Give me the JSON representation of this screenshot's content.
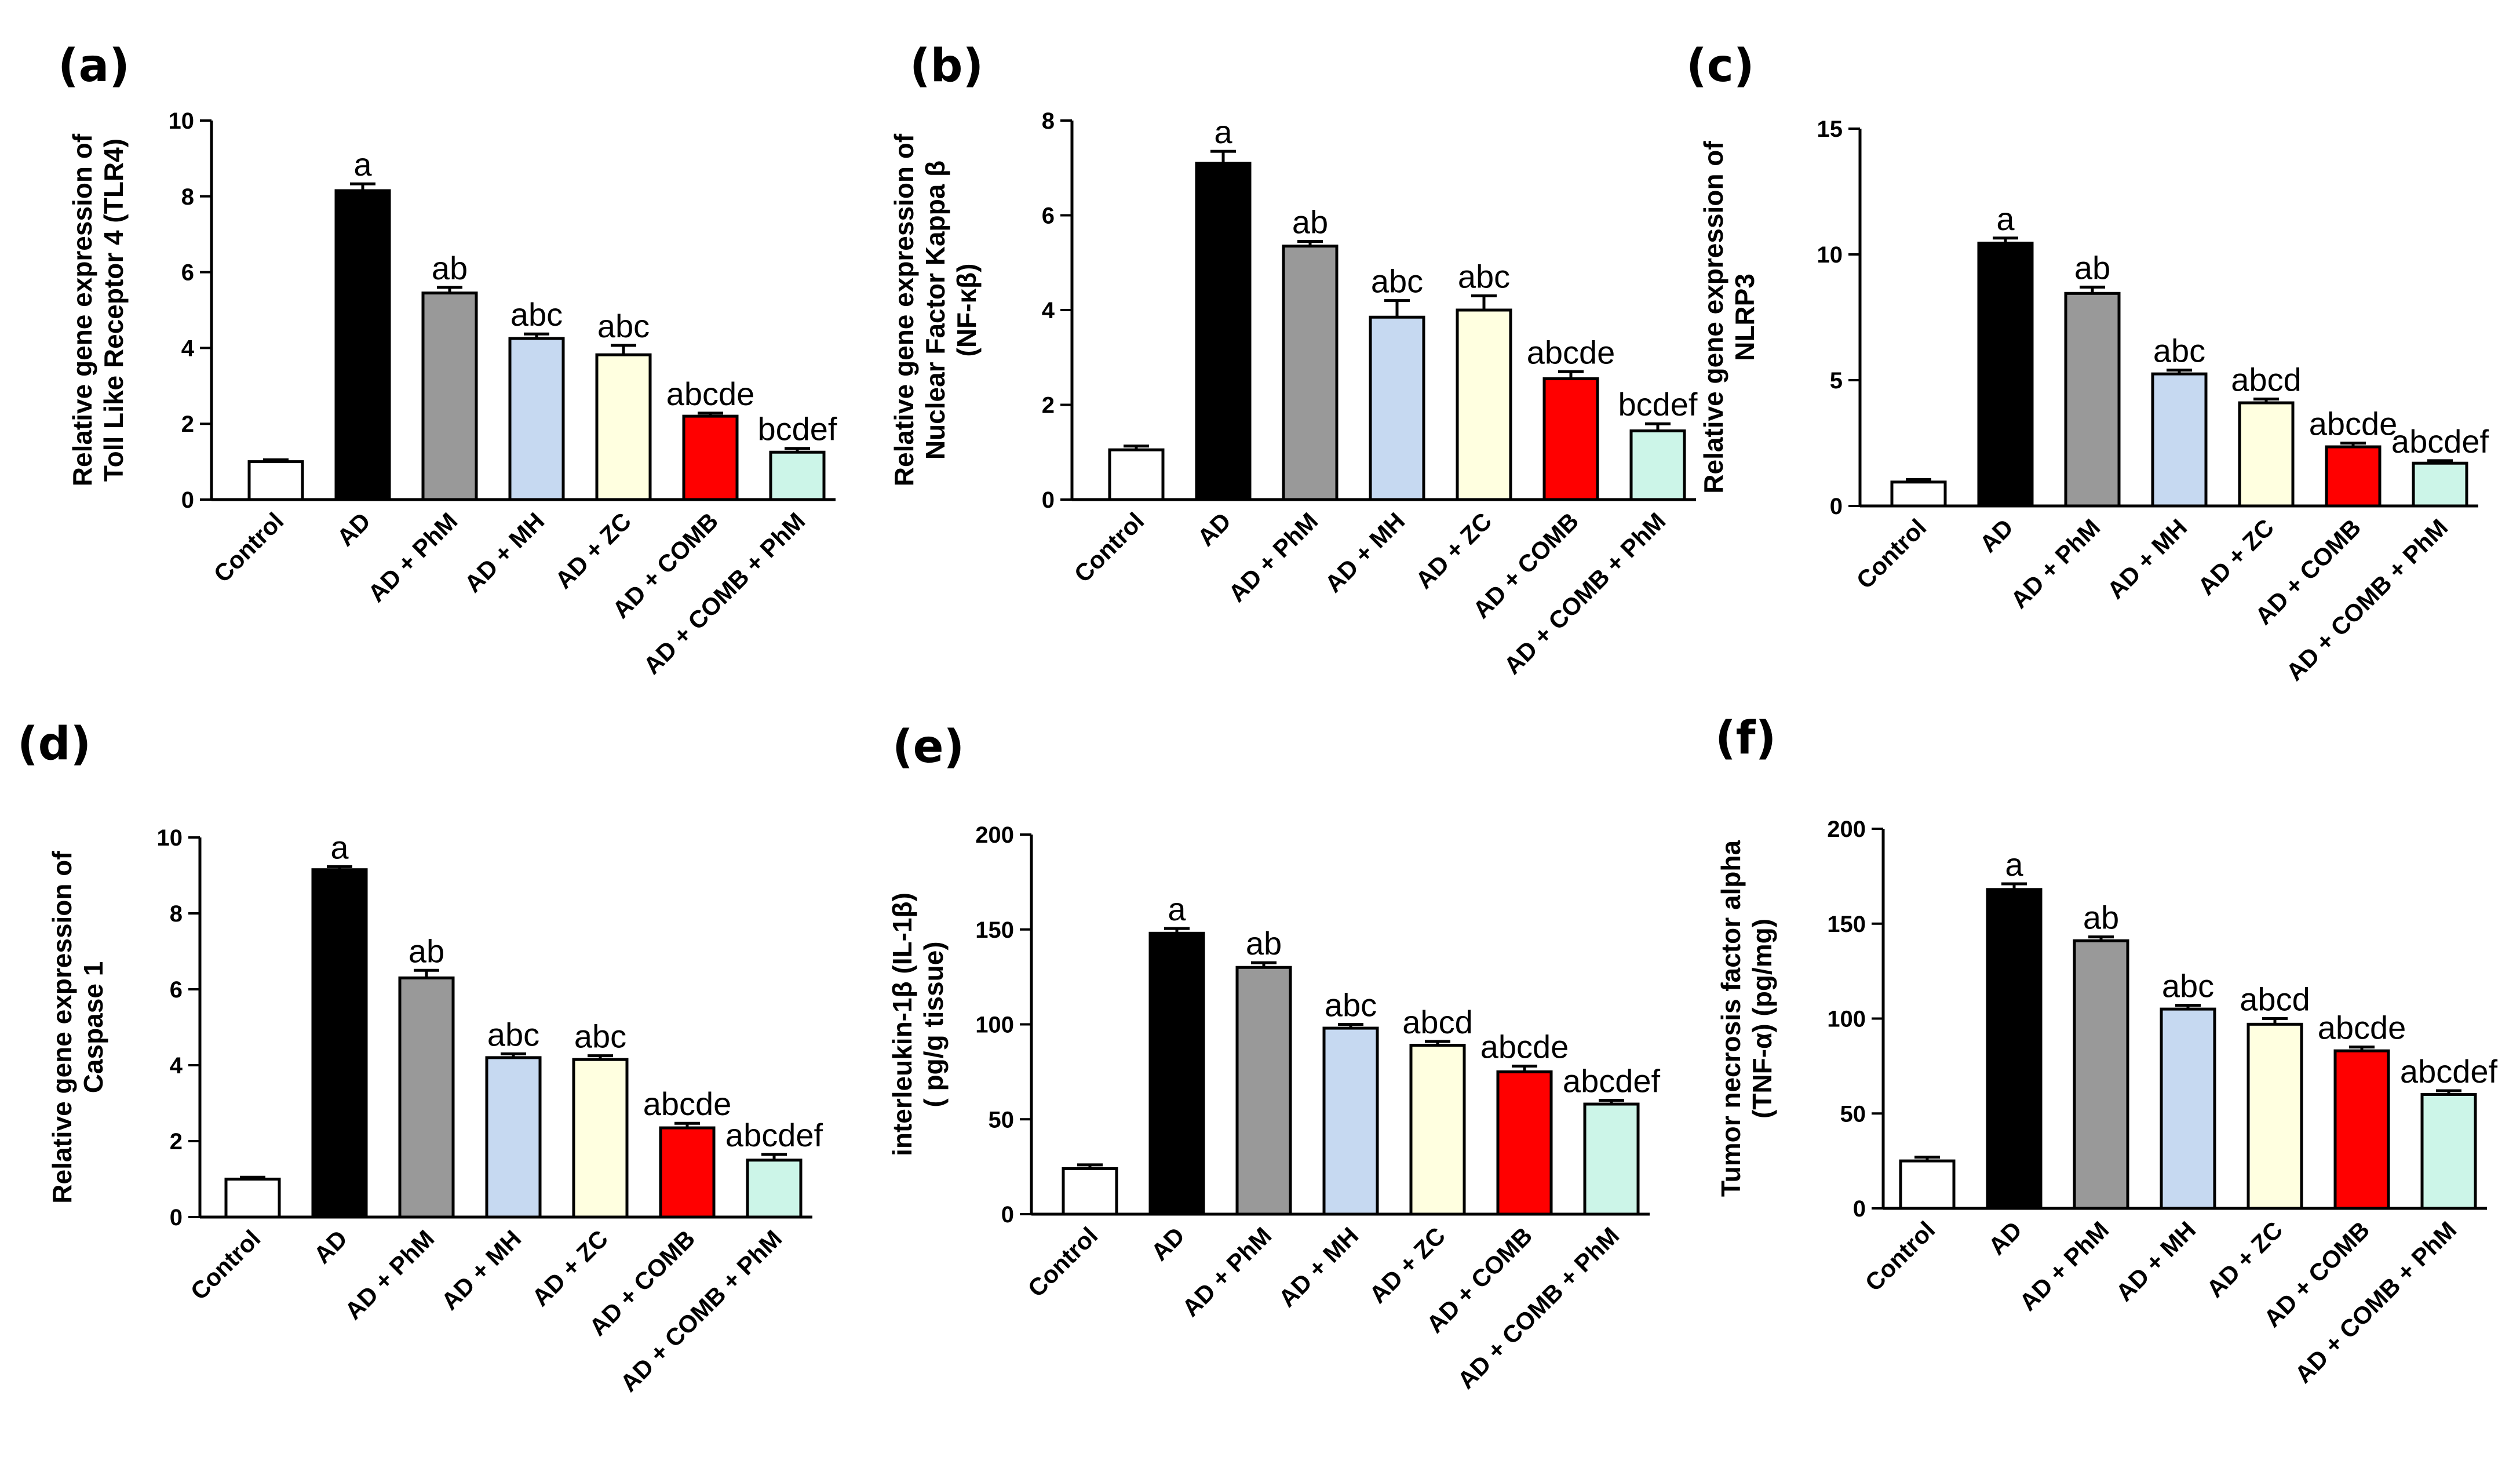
{
  "colors": {
    "Control": "#ffffff",
    "AD": "#000000",
    "AD + PhM": "#999999",
    "AD + MH": "#c6d9f1",
    "AD + ZC": "#ffffe0",
    "AD + COMB": "#ff0000",
    "AD + COMB + PhM": "#ccf5e8"
  },
  "chart_data": [
    {
      "panel": "(a)",
      "type": "bar",
      "ylabel": [
        "Relative gene expression of",
        "Toll Like Receptor 4 (TLR4)"
      ],
      "ylim": [
        0,
        10
      ],
      "yticks": [
        0,
        2,
        4,
        6,
        8,
        10
      ],
      "categories": [
        "Control",
        "AD",
        "AD + PhM",
        "AD + MH",
        "AD + ZC",
        "AD + COMB",
        "AD + COMB + PhM"
      ],
      "values": [
        1.0,
        8.15,
        5.45,
        4.25,
        3.82,
        2.2,
        1.25
      ],
      "errors": [
        0.05,
        0.18,
        0.15,
        0.12,
        0.25,
        0.08,
        0.1
      ],
      "annotations": [
        "",
        "a",
        "ab",
        "abc",
        "abc",
        "abcde",
        "bcdef"
      ]
    },
    {
      "panel": "(b)",
      "type": "bar",
      "ylabel": [
        "Relative gene expression of",
        "Nuclear Factor Kappa β",
        "(NF-κβ)"
      ],
      "ylim": [
        0,
        8
      ],
      "yticks": [
        0,
        2,
        4,
        6,
        8
      ],
      "categories": [
        "Control",
        "AD",
        "AD + PhM",
        "AD + MH",
        "AD + ZC",
        "AD + COMB",
        "AD + COMB + PhM"
      ],
      "values": [
        1.05,
        7.1,
        5.35,
        3.85,
        4.0,
        2.55,
        1.45
      ],
      "errors": [
        0.08,
        0.25,
        0.1,
        0.35,
        0.3,
        0.15,
        0.15
      ],
      "annotations": [
        "",
        "a",
        "ab",
        "abc",
        "abc",
        "abcde",
        "bcdef"
      ]
    },
    {
      "panel": "(c)",
      "type": "bar",
      "ylabel": [
        "Relative gene expression of",
        "NLRP3"
      ],
      "ylim": [
        0,
        15
      ],
      "yticks": [
        0,
        5,
        10,
        15
      ],
      "categories": [
        "Control",
        "AD",
        "AD + PhM",
        "AD + MH",
        "AD + ZC",
        "AD + COMB",
        "AD + COMB + PhM"
      ],
      "values": [
        0.95,
        10.45,
        8.45,
        5.25,
        4.1,
        2.35,
        1.7
      ],
      "errors": [
        0.1,
        0.2,
        0.25,
        0.15,
        0.15,
        0.15,
        0.1
      ],
      "annotations": [
        "",
        "a",
        "ab",
        "abc",
        "abcd",
        "abcde",
        "abcdef"
      ]
    },
    {
      "panel": "(d)",
      "type": "bar",
      "ylabel": [
        "Relative gene expression of",
        "Caspase 1"
      ],
      "ylim": [
        0,
        10
      ],
      "yticks": [
        0,
        2,
        4,
        6,
        8,
        10
      ],
      "categories": [
        "Control",
        "AD",
        "AD + PhM",
        "AD + MH",
        "AD + ZC",
        "AD + COMB",
        "AD + COMB + PhM"
      ],
      "values": [
        1.0,
        9.15,
        6.3,
        4.2,
        4.15,
        2.35,
        1.5
      ],
      "errors": [
        0.05,
        0.08,
        0.2,
        0.1,
        0.1,
        0.12,
        0.15
      ],
      "annotations": [
        "",
        "a",
        "ab",
        "abc",
        "abc",
        "abcde",
        "abcdef"
      ]
    },
    {
      "panel": "(e)",
      "type": "bar",
      "ylabel": [
        "interleukin-1β (IL-1β)",
        "( pg/g tissue)"
      ],
      "ylim": [
        0,
        200
      ],
      "yticks": [
        0,
        50,
        100,
        150,
        200
      ],
      "categories": [
        "Control",
        "AD",
        "AD + PhM",
        "AD + MH",
        "AD + ZC",
        "AD + COMB",
        "AD + COMB + PhM"
      ],
      "values": [
        24,
        148,
        130,
        98,
        89,
        75,
        58
      ],
      "errors": [
        2,
        2.5,
        2.5,
        2,
        2,
        3,
        2
      ],
      "annotations": [
        "",
        "a",
        "ab",
        "abc",
        "abcd",
        "abcde",
        "abcdef"
      ]
    },
    {
      "panel": "(f)",
      "type": "bar",
      "ylabel": [
        "Tumor necrosis factor alpha",
        "(TNF-α) (pg/mg)"
      ],
      "ylim": [
        0,
        200
      ],
      "yticks": [
        0,
        50,
        100,
        150,
        200
      ],
      "categories": [
        "Control",
        "AD",
        "AD + PhM",
        "AD + MH",
        "AD + ZC",
        "AD + COMB",
        "AD + COMB + PhM"
      ],
      "values": [
        25,
        168,
        141,
        105,
        97,
        83,
        60
      ],
      "errors": [
        2,
        3,
        2,
        2,
        3,
        2,
        2
      ],
      "annotations": [
        "",
        "a",
        "ab",
        "abc",
        "abcd",
        "abcde",
        "abcdef"
      ]
    }
  ]
}
